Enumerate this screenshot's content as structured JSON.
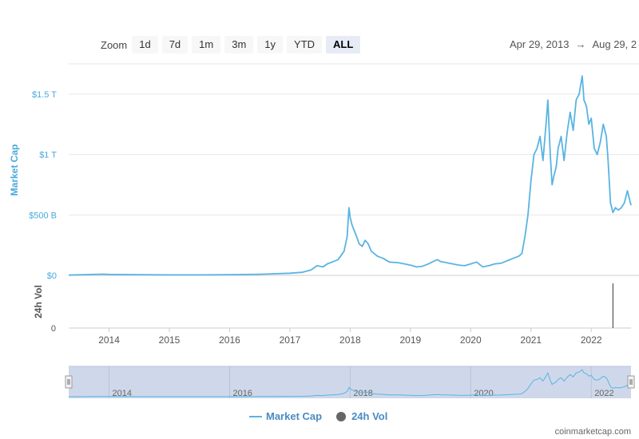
{
  "zoom": {
    "label": "Zoom",
    "buttons": [
      "1d",
      "7d",
      "1m",
      "3m",
      "1y",
      "YTD",
      "ALL"
    ],
    "active": "ALL"
  },
  "date_range": {
    "from": "Apr 29, 2013",
    "arrow": "→",
    "to": "Aug 29, 2"
  },
  "legend": {
    "market_cap": "Market Cap",
    "volume": "24h Vol"
  },
  "credit": "coinmarketcap.com",
  "colors": {
    "line": "#59b4e2",
    "axis_label": "#4aa9dc",
    "navigator_fill": "#cfd8ea",
    "volume_bar": "#333333"
  },
  "chart_data": {
    "type": "line",
    "ylabel": "Market Cap",
    "ylabel2": "24h Vol",
    "y_ticks": [
      {
        "value": 0,
        "label": "$0"
      },
      {
        "value": 500,
        "label": "$500 B"
      },
      {
        "value": 1000,
        "label": "$1 T"
      },
      {
        "value": 1500,
        "label": "$1.5 T"
      }
    ],
    "y2_ticks": [
      {
        "value": 0,
        "label": "0"
      }
    ],
    "ylim": [
      0,
      1750
    ],
    "xlim": [
      2013.33,
      2022.66
    ],
    "x_ticks": [
      "2014",
      "2015",
      "2016",
      "2017",
      "2018",
      "2019",
      "2020",
      "2021",
      "2022"
    ],
    "navigator_ticks": [
      "2014",
      "2016",
      "2018",
      "2020",
      "2022"
    ],
    "series": [
      {
        "name": "Market Cap",
        "x": [
          2013.33,
          2013.9,
          2014.0,
          2014.5,
          2015.0,
          2015.5,
          2016.0,
          2016.5,
          2017.0,
          2017.2,
          2017.35,
          2017.45,
          2017.55,
          2017.62,
          2017.7,
          2017.8,
          2017.9,
          2017.95,
          2017.98,
          2018.0,
          2018.03,
          2018.06,
          2018.1,
          2018.15,
          2018.2,
          2018.25,
          2018.3,
          2018.35,
          2018.45,
          2018.55,
          2018.65,
          2018.8,
          2018.9,
          2019.0,
          2019.1,
          2019.2,
          2019.3,
          2019.4,
          2019.45,
          2019.5,
          2019.6,
          2019.7,
          2019.8,
          2019.9,
          2020.0,
          2020.1,
          2020.15,
          2020.2,
          2020.3,
          2020.4,
          2020.5,
          2020.6,
          2020.7,
          2020.8,
          2020.85,
          2020.9,
          2020.95,
          2021.0,
          2021.05,
          2021.1,
          2021.15,
          2021.2,
          2021.25,
          2021.28,
          2021.32,
          2021.35,
          2021.38,
          2021.42,
          2021.45,
          2021.5,
          2021.55,
          2021.6,
          2021.65,
          2021.7,
          2021.75,
          2021.8,
          2021.85,
          2021.88,
          2021.92,
          2021.96,
          2022.0,
          2022.05,
          2022.1,
          2022.15,
          2022.2,
          2022.25,
          2022.28,
          2022.32,
          2022.36,
          2022.4,
          2022.45,
          2022.5,
          2022.55,
          2022.6,
          2022.64,
          2022.66
        ],
        "values": [
          2,
          10,
          8,
          6,
          4,
          4,
          6,
          9,
          18,
          25,
          45,
          80,
          70,
          95,
          110,
          130,
          200,
          320,
          560,
          480,
          420,
          380,
          330,
          260,
          240,
          290,
          260,
          200,
          160,
          140,
          110,
          105,
          95,
          85,
          70,
          75,
          95,
          120,
          130,
          115,
          105,
          95,
          85,
          80,
          95,
          110,
          90,
          70,
          80,
          95,
          100,
          120,
          140,
          160,
          180,
          320,
          500,
          780,
          1000,
          1050,
          1150,
          950,
          1250,
          1450,
          1000,
          750,
          820,
          900,
          1050,
          1150,
          950,
          1180,
          1350,
          1200,
          1450,
          1500,
          1650,
          1450,
          1400,
          1250,
          1300,
          1050,
          1000,
          1100,
          1250,
          1150,
          950,
          600,
          520,
          560,
          540,
          560,
          600,
          700,
          620,
          580
        ]
      },
      {
        "name": "24h Vol",
        "x": [
          2022.36
        ],
        "values": [
          1
        ]
      }
    ],
    "grid": true,
    "legend_position": "bottom-center"
  }
}
